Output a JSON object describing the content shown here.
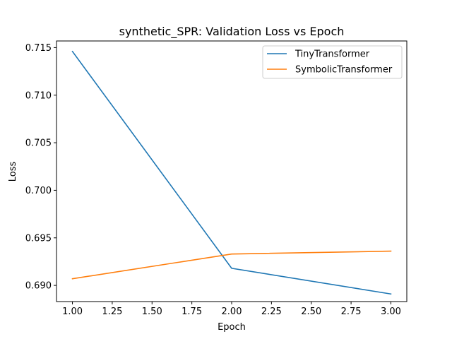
{
  "chart_data": {
    "type": "line",
    "title": "synthetic_SPR: Validation Loss vs Epoch",
    "xlabel": "Epoch",
    "ylabel": "Loss",
    "x": [
      1.0,
      2.0,
      3.0
    ],
    "xlim": [
      0.9,
      3.1
    ],
    "ylim": [
      0.6883,
      0.7157
    ],
    "xticks": [
      1.0,
      1.25,
      1.5,
      1.75,
      2.0,
      2.25,
      2.5,
      2.75,
      3.0
    ],
    "xtick_labels": [
      "1.00",
      "1.25",
      "1.50",
      "1.75",
      "2.00",
      "2.25",
      "2.50",
      "2.75",
      "3.00"
    ],
    "yticks": [
      0.69,
      0.695,
      0.7,
      0.705,
      0.71,
      0.715
    ],
    "ytick_labels": [
      "0.690",
      "0.695",
      "0.700",
      "0.705",
      "0.710",
      "0.715"
    ],
    "grid": false,
    "legend_position": "top-right",
    "series": [
      {
        "name": "TinyTransformer",
        "color": "#1f77b4",
        "values": [
          0.7146,
          0.6918,
          0.6891
        ]
      },
      {
        "name": "SymbolicTransformer",
        "color": "#ff7f0e",
        "values": [
          0.6907,
          0.6933,
          0.6936
        ]
      }
    ]
  }
}
